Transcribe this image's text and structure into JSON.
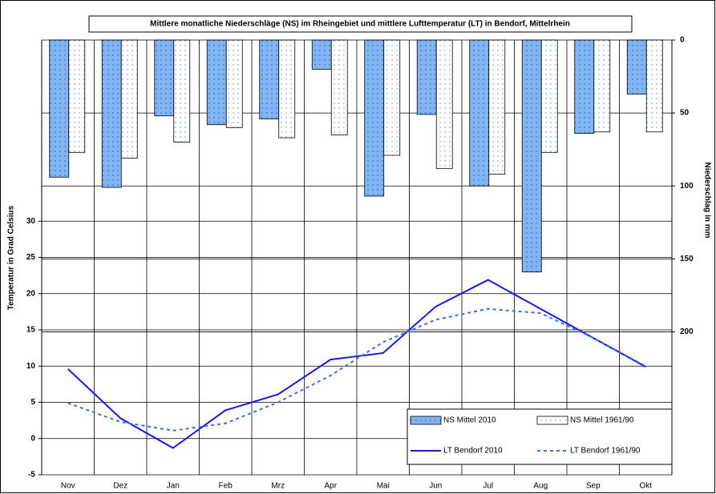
{
  "chart_data": {
    "type": "bar",
    "title": "Mittlere monatliche Niederschläge (NS) im Rheingebiet und mittlere Lufttemperatur (LT) in Bendorf, Mittelrhein",
    "y_label": "Temperatur in Grad Celsius",
    "y2_label": "Niederschlag in mm",
    "categories": [
      "Nov",
      "Dez",
      "Jan",
      "Feb",
      "Mrz",
      "Apr",
      "Mai",
      "Jun",
      "Jul",
      "Aug",
      "Sep",
      "Okt"
    ],
    "ylim": [
      -5,
      55
    ],
    "yticks": [
      -5,
      0,
      5,
      10,
      15,
      20,
      25,
      30
    ],
    "y2lim": [
      0,
      298
    ],
    "y2ticks": [
      0,
      50,
      100,
      150,
      200
    ],
    "y2_reversed": true,
    "grid": true,
    "legend": "lower right",
    "series": [
      {
        "name": "NS Mittel 2010",
        "type": "bar",
        "axis": "y2",
        "color": "#80b4f2",
        "values": [
          94,
          101,
          52,
          58,
          54,
          20,
          107,
          51,
          100,
          159,
          64,
          37
        ]
      },
      {
        "name": "NS Mittel 1961/90",
        "type": "bar",
        "axis": "y2",
        "color": "#ffffff",
        "values": [
          77,
          81,
          70,
          60,
          67,
          65,
          79,
          88,
          92,
          77,
          63,
          63
        ]
      },
      {
        "name": "LT Bendorf 2010",
        "type": "line",
        "color": "#1a1ad8",
        "dashed": false,
        "values": [
          9.6,
          2.8,
          -1.3,
          3.9,
          6.1,
          10.9,
          11.8,
          18.2,
          21.9,
          17.9,
          13.9,
          9.9
        ]
      },
      {
        "name": "LT Bendorf 1961/90",
        "type": "line",
        "color": "#3d6fe0",
        "dashed": true,
        "values": [
          4.9,
          2.3,
          1.1,
          2.1,
          5.0,
          8.7,
          13.3,
          16.4,
          17.9,
          17.3,
          13.9,
          10.0
        ]
      }
    ]
  }
}
